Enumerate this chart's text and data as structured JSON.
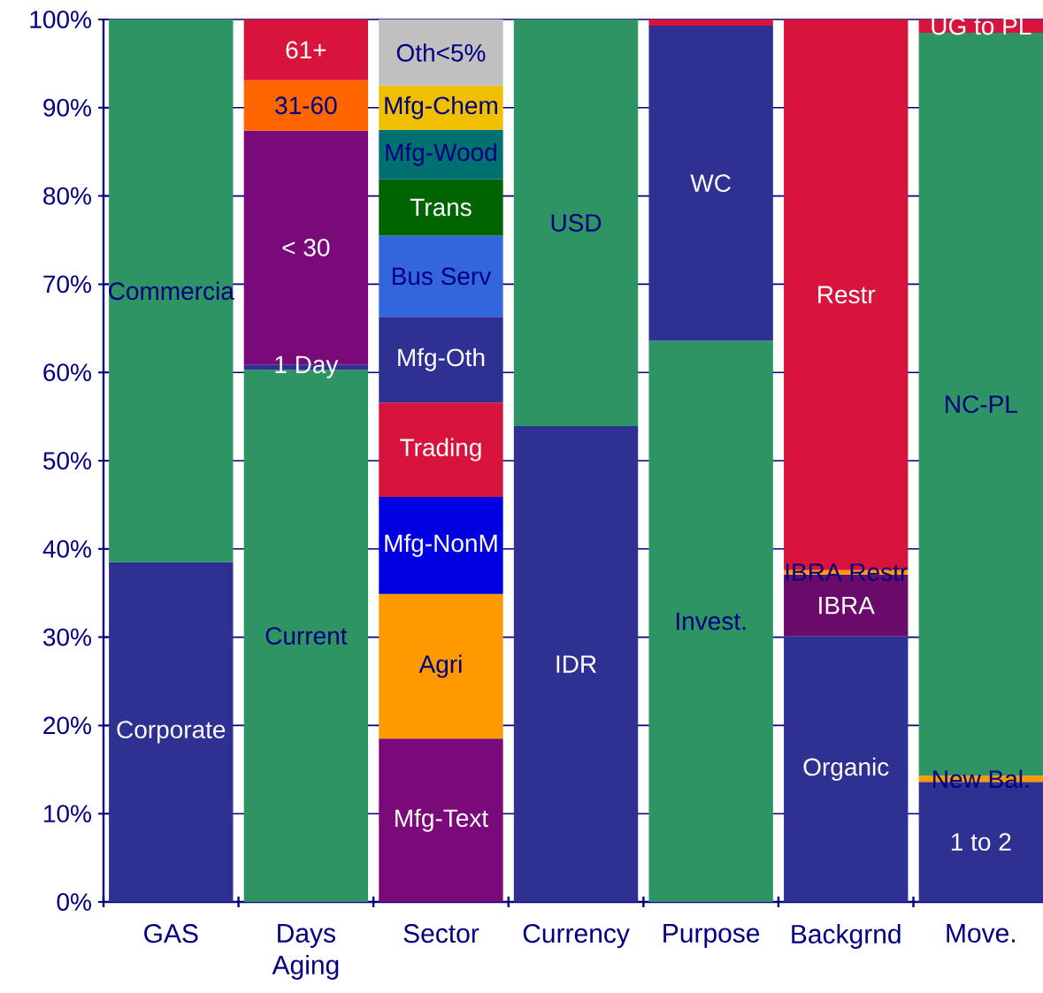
{
  "chart_data": {
    "type": "bar",
    "stacked": true,
    "grid": "y",
    "categories": [
      "GAS",
      "Days Aging",
      "Sector",
      "Currency",
      "Purpose",
      "Backgrnd",
      "Move."
    ],
    "ylim": [
      0,
      100
    ],
    "yticks": [
      {
        "value": 0,
        "label": "0%"
      },
      {
        "value": 10,
        "label": "10%"
      },
      {
        "value": 20,
        "label": "20%"
      },
      {
        "value": 30,
        "label": "30%"
      },
      {
        "value": 40,
        "label": "40%"
      },
      {
        "value": 50,
        "label": "50%"
      },
      {
        "value": 60,
        "label": "60%"
      },
      {
        "value": 70,
        "label": "70%"
      },
      {
        "value": 80,
        "label": "80%"
      },
      {
        "value": 90,
        "label": "90%"
      },
      {
        "value": 100,
        "label": "100%"
      }
    ],
    "series": [
      {
        "name": "Corporate",
        "color": "#2e3192",
        "values": [
          38.5,
          null,
          null,
          null,
          null,
          null,
          null
        ]
      },
      {
        "name": "Commercia",
        "color": "#2e9464",
        "values": [
          61.5,
          null,
          null,
          null,
          null,
          null,
          null
        ]
      },
      {
        "name": "Current",
        "color": "#2e9464",
        "values": [
          null,
          60.3,
          null,
          null,
          null,
          null,
          null
        ]
      },
      {
        "name": "1 Day",
        "color": "#2e3192",
        "values": [
          null,
          0.6,
          null,
          null,
          null,
          null,
          null
        ]
      },
      {
        "name": "< 30",
        "color": "#7a0a7a",
        "values": [
          null,
          26.5,
          null,
          null,
          null,
          null,
          null
        ]
      },
      {
        "name": "31-60",
        "color": "#ff6600",
        "values": [
          null,
          5.7,
          null,
          null,
          null,
          null,
          null
        ]
      },
      {
        "name": "61+",
        "color": "#d9143c",
        "values": [
          null,
          6.9,
          null,
          null,
          null,
          null,
          null
        ]
      },
      {
        "name": "Mfg-Text",
        "color": "#7a0a7a",
        "values": [
          null,
          null,
          18.5,
          null,
          null,
          null,
          null
        ]
      },
      {
        "name": "Agri",
        "color": "#ff9900",
        "values": [
          null,
          null,
          16.4,
          null,
          null,
          null,
          null
        ]
      },
      {
        "name": "Mfg-NonM",
        "color": "#0000e0",
        "values": [
          null,
          null,
          11.0,
          null,
          null,
          null,
          null
        ]
      },
      {
        "name": "Trading",
        "color": "#d9143c",
        "values": [
          null,
          null,
          10.7,
          null,
          null,
          null,
          null
        ]
      },
      {
        "name": "Mfg-Oth",
        "color": "#2e3192",
        "values": [
          null,
          null,
          9.7,
          null,
          null,
          null,
          null
        ]
      },
      {
        "name": "Bus Serv",
        "color": "#3366dd",
        "values": [
          null,
          null,
          9.2,
          null,
          null,
          null,
          null
        ]
      },
      {
        "name": "Trans",
        "color": "#006400",
        "values": [
          null,
          null,
          6.4,
          null,
          null,
          null,
          null
        ]
      },
      {
        "name": "Mfg-Wood",
        "color": "#007070",
        "values": [
          null,
          null,
          5.6,
          null,
          null,
          null,
          null
        ]
      },
      {
        "name": "Mfg-Chem",
        "color": "#f0c000",
        "values": [
          null,
          null,
          5.0,
          null,
          null,
          null,
          null
        ]
      },
      {
        "name": "Oth<5%",
        "color": "#c0c0c0",
        "values": [
          null,
          null,
          7.5,
          null,
          null,
          null,
          null
        ]
      },
      {
        "name": "IDR",
        "color": "#2e3192",
        "values": [
          null,
          null,
          null,
          53.9,
          null,
          null,
          null
        ]
      },
      {
        "name": "USD",
        "color": "#2e9464",
        "values": [
          null,
          null,
          null,
          46.1,
          null,
          null,
          null
        ]
      },
      {
        "name": "Invest.",
        "color": "#2e9464",
        "values": [
          null,
          null,
          null,
          null,
          63.6,
          null,
          null
        ]
      },
      {
        "name": "WC",
        "color": "#2e3192",
        "values": [
          null,
          null,
          null,
          null,
          35.7,
          null,
          null
        ]
      },
      {
        "color": "#d9143c",
        "values": [
          null,
          null,
          null,
          null,
          0.7,
          null,
          null
        ]
      },
      {
        "name": "Organic",
        "color": "#2e3192",
        "values": [
          null,
          null,
          null,
          null,
          null,
          30.1,
          null
        ]
      },
      {
        "name": "IBRA",
        "color": "#6a0a6a",
        "values": [
          null,
          null,
          null,
          null,
          null,
          7.0,
          null
        ]
      },
      {
        "name": "IBRA Restr",
        "color": "#ff9900",
        "values": [
          null,
          null,
          null,
          null,
          null,
          0.5,
          null
        ]
      },
      {
        "name": "Restr",
        "color": "#d9143c",
        "values": [
          null,
          null,
          null,
          null,
          null,
          62.4,
          null
        ]
      },
      {
        "name": "1 to 2",
        "color": "#2e3192",
        "values": [
          null,
          null,
          null,
          null,
          null,
          null,
          13.6
        ]
      },
      {
        "name": "New Bal.",
        "color": "#ff9900",
        "values": [
          null,
          null,
          null,
          null,
          null,
          null,
          0.7
        ]
      },
      {
        "name": "NC-PL",
        "color": "#2e9464",
        "values": [
          null,
          null,
          null,
          null,
          null,
          null,
          84.2
        ]
      },
      {
        "name": "UG to PL",
        "color": "#d9143c",
        "values": [
          null,
          null,
          null,
          null,
          null,
          null,
          1.5
        ]
      }
    ]
  }
}
